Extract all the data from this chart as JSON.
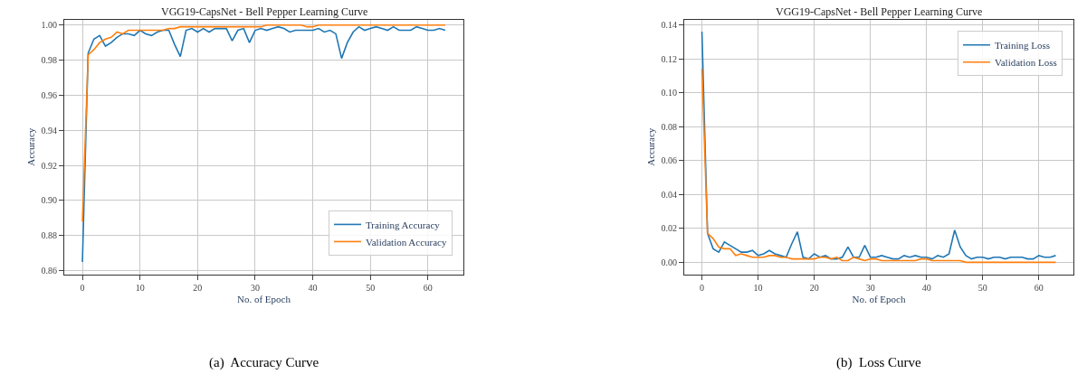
{
  "chart_data": [
    {
      "type": "line",
      "title": "VGG19-CapsNet - Bell Pepper Learning Curve",
      "xlabel": "No. of Epoch",
      "ylabel": "Accuracy",
      "x": [
        0,
        1,
        2,
        3,
        4,
        5,
        6,
        7,
        8,
        9,
        10,
        11,
        12,
        13,
        14,
        15,
        16,
        17,
        18,
        19,
        20,
        21,
        22,
        23,
        24,
        25,
        26,
        27,
        28,
        29,
        30,
        31,
        32,
        33,
        34,
        35,
        36,
        37,
        38,
        39,
        40,
        41,
        42,
        43,
        44,
        45,
        46,
        47,
        48,
        49,
        50,
        51,
        52,
        53,
        54,
        55,
        56,
        57,
        58,
        59,
        60,
        61,
        62,
        63
      ],
      "series": [
        {
          "name": "Training Accuracy",
          "color": "#1f77b4",
          "values": [
            0.865,
            0.984,
            0.992,
            0.994,
            0.988,
            0.99,
            0.993,
            0.995,
            0.995,
            0.994,
            0.997,
            0.995,
            0.994,
            0.996,
            0.997,
            0.997,
            0.989,
            0.982,
            0.997,
            0.998,
            0.996,
            0.998,
            0.996,
            0.998,
            0.998,
            0.998,
            0.991,
            0.997,
            0.998,
            0.99,
            0.997,
            0.998,
            0.997,
            0.998,
            0.999,
            0.998,
            0.996,
            0.997,
            0.997,
            0.997,
            0.997,
            0.998,
            0.996,
            0.997,
            0.995,
            0.981,
            0.99,
            0.996,
            0.999,
            0.997,
            0.998,
            0.999,
            0.998,
            0.997,
            0.999,
            0.997,
            0.997,
            0.997,
            0.999,
            0.998,
            0.997,
            0.997,
            0.998,
            0.997
          ]
        },
        {
          "name": "Validation Accuracy",
          "color": "#ff7f0e",
          "values": [
            0.888,
            0.983,
            0.986,
            0.99,
            0.992,
            0.993,
            0.996,
            0.995,
            0.997,
            0.997,
            0.997,
            0.997,
            0.997,
            0.997,
            0.997,
            0.998,
            0.998,
            0.999,
            0.999,
            0.999,
            0.999,
            0.999,
            0.999,
            0.999,
            0.999,
            0.999,
            0.999,
            0.999,
            0.999,
            0.999,
            0.999,
            0.999,
            1.0,
            1.0,
            1.0,
            1.0,
            1.0,
            1.0,
            1.0,
            0.999,
            0.999,
            1.0,
            1.0,
            1.0,
            1.0,
            1.0,
            1.0,
            1.0,
            1.0,
            1.0,
            1.0,
            1.0,
            1.0,
            1.0,
            1.0,
            1.0,
            1.0,
            1.0,
            1.0,
            1.0,
            1.0,
            1.0,
            1.0,
            1.0
          ]
        }
      ],
      "xlim": [
        -3.15,
        66.15
      ],
      "xticks": [
        0,
        10,
        20,
        30,
        40,
        50,
        60
      ],
      "ylim": [
        0.858,
        1.003
      ],
      "yticks": [
        {
          "value": 0.86,
          "label": "0.86"
        },
        {
          "value": 0.88,
          "label": "0.88"
        },
        {
          "value": 0.9,
          "label": "0.90"
        },
        {
          "value": 0.92,
          "label": "0.92"
        },
        {
          "value": 0.94,
          "label": "0.94"
        },
        {
          "value": 0.96,
          "label": "0.96"
        },
        {
          "value": 0.98,
          "label": "0.98"
        },
        {
          "value": 1.0,
          "label": "1.00"
        }
      ],
      "grid": true,
      "legend": "bottom right",
      "annotations": [
        "(a)  Accuracy Curve"
      ]
    },
    {
      "type": "line",
      "title": "VGG19-CapsNet - Bell Pepper Learning Curve",
      "xlabel": "No. of Epoch",
      "ylabel": "Accuracy",
      "x": [
        0,
        1,
        2,
        3,
        4,
        5,
        6,
        7,
        8,
        9,
        10,
        11,
        12,
        13,
        14,
        15,
        16,
        17,
        18,
        19,
        20,
        21,
        22,
        23,
        24,
        25,
        26,
        27,
        28,
        29,
        30,
        31,
        32,
        33,
        34,
        35,
        36,
        37,
        38,
        39,
        40,
        41,
        42,
        43,
        44,
        45,
        46,
        47,
        48,
        49,
        50,
        51,
        52,
        53,
        54,
        55,
        56,
        57,
        58,
        59,
        60,
        61,
        62,
        63
      ],
      "series": [
        {
          "name": "Training Loss",
          "color": "#1f77b4",
          "values": [
            0.136,
            0.017,
            0.008,
            0.006,
            0.012,
            0.01,
            0.008,
            0.006,
            0.006,
            0.007,
            0.004,
            0.005,
            0.007,
            0.005,
            0.004,
            0.003,
            0.011,
            0.018,
            0.003,
            0.002,
            0.005,
            0.003,
            0.004,
            0.002,
            0.002,
            0.003,
            0.009,
            0.003,
            0.003,
            0.01,
            0.003,
            0.003,
            0.004,
            0.003,
            0.002,
            0.002,
            0.004,
            0.003,
            0.004,
            0.003,
            0.003,
            0.002,
            0.004,
            0.003,
            0.005,
            0.019,
            0.009,
            0.004,
            0.002,
            0.003,
            0.003,
            0.002,
            0.003,
            0.003,
            0.002,
            0.003,
            0.003,
            0.003,
            0.002,
            0.002,
            0.004,
            0.003,
            0.003,
            0.004
          ]
        },
        {
          "name": "Validation Loss",
          "color": "#ff7f0e",
          "values": [
            0.114,
            0.017,
            0.014,
            0.009,
            0.008,
            0.008,
            0.004,
            0.005,
            0.004,
            0.003,
            0.003,
            0.003,
            0.004,
            0.004,
            0.003,
            0.003,
            0.002,
            0.002,
            0.002,
            0.002,
            0.002,
            0.003,
            0.003,
            0.002,
            0.003,
            0.001,
            0.001,
            0.003,
            0.002,
            0.001,
            0.002,
            0.002,
            0.001,
            0.001,
            0.001,
            0.001,
            0.001,
            0.001,
            0.001,
            0.002,
            0.002,
            0.001,
            0.001,
            0.001,
            0.001,
            0.001,
            0.001,
            0.0,
            0.0,
            0.0,
            0.0,
            0.0,
            0.0,
            0.0,
            0.0,
            0.0,
            0.0,
            0.0,
            0.0,
            0.0,
            0.0,
            0.0,
            0.0,
            0.0
          ]
        }
      ],
      "xlim": [
        -3.15,
        66.15
      ],
      "xticks": [
        0,
        10,
        20,
        30,
        40,
        50,
        60
      ],
      "ylim": [
        -0.007,
        0.143
      ],
      "yticks": [
        {
          "value": 0.0,
          "label": "0.00"
        },
        {
          "value": 0.02,
          "label": "0.02"
        },
        {
          "value": 0.04,
          "label": "0.04"
        },
        {
          "value": 0.06,
          "label": "0.06"
        },
        {
          "value": 0.08,
          "label": "0.08"
        },
        {
          "value": 0.1,
          "label": "0.10"
        },
        {
          "value": 0.12,
          "label": "0.12"
        },
        {
          "value": 0.14,
          "label": "0.14"
        }
      ],
      "grid": true,
      "legend": "top right",
      "annotations": [
        "(b)  Loss Curve"
      ]
    }
  ]
}
